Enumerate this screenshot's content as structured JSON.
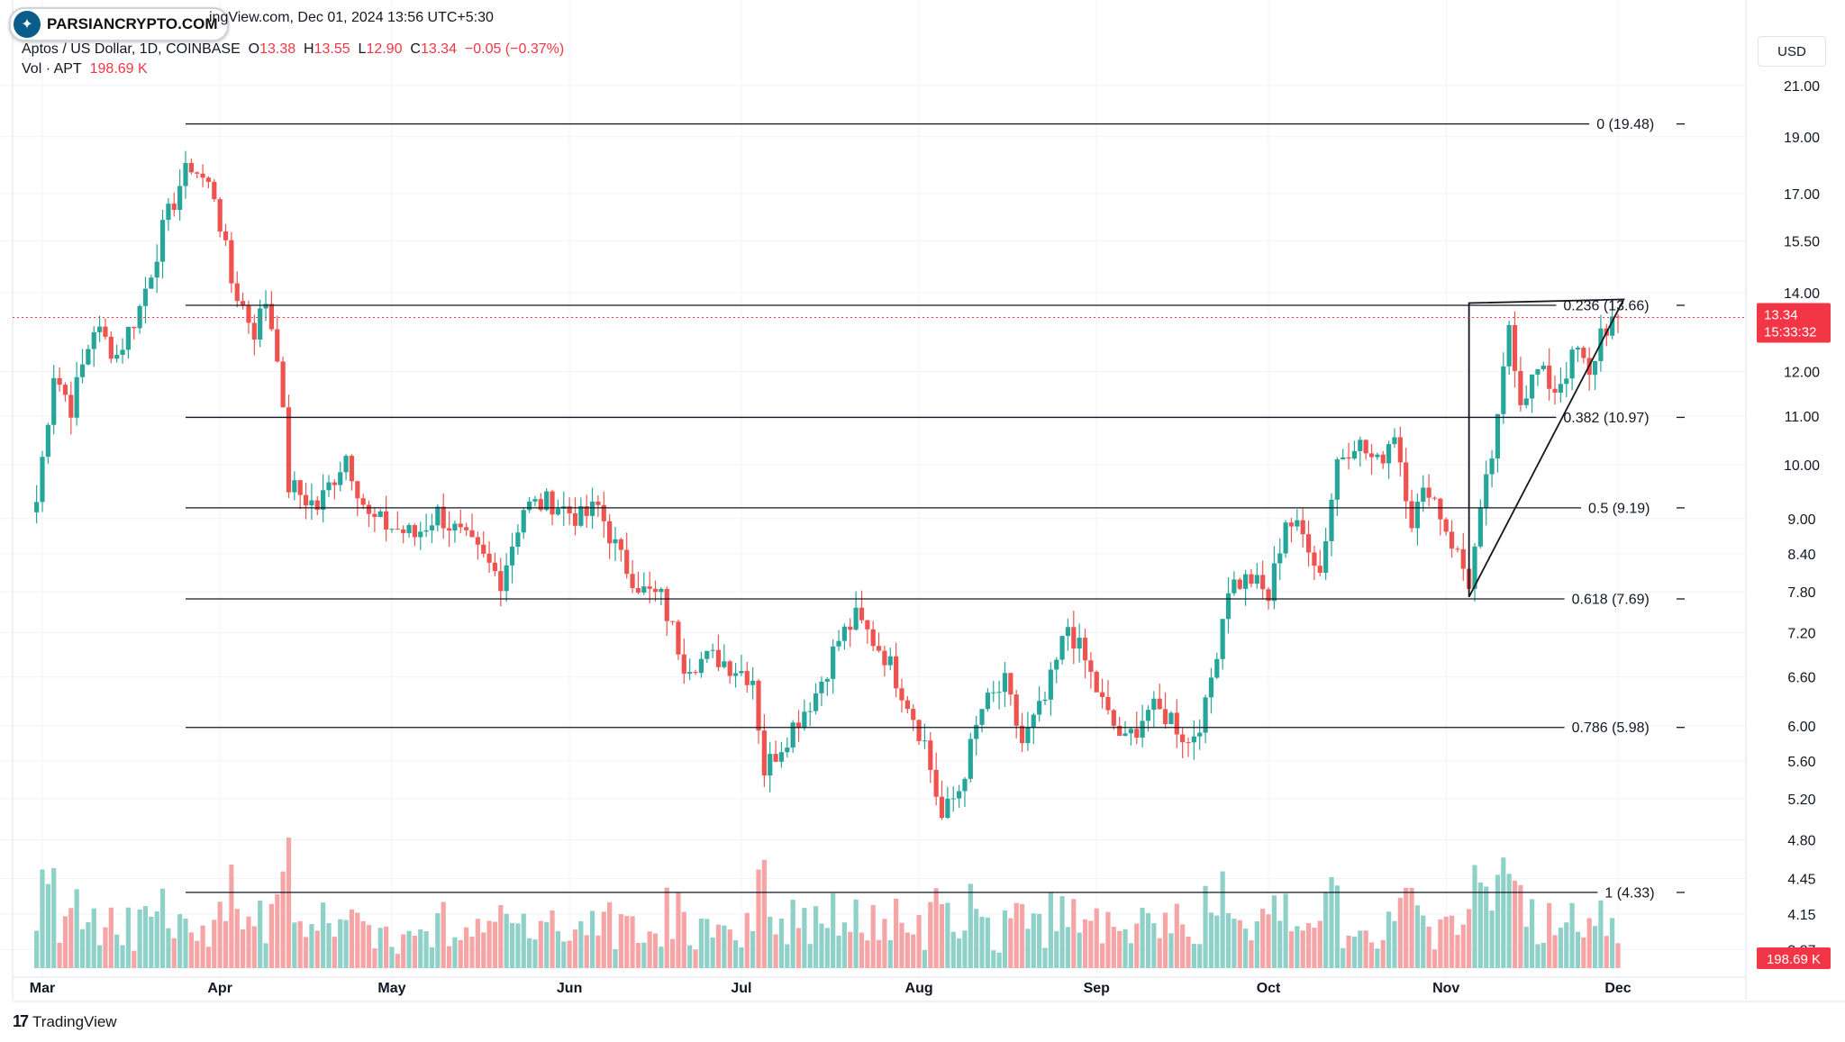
{
  "header": {
    "symbol_line": "Aptos / US Dollar, 1D, COINBASE",
    "open_label": "O",
    "open": "13.38",
    "high_label": "H",
    "high": "13.55",
    "low_label": "L",
    "low": "12.90",
    "close_label": "C",
    "close": "13.34",
    "change": "−0.05 (−0.37%)",
    "vol_label": "Vol · APT",
    "vol_value": "198.69 K"
  },
  "date_line": "ingView.com, Dec 01, 2024 13:56 UTC+5:30",
  "watermark": {
    "text": "PARSIANCRYPTO.COM"
  },
  "currency": "USD",
  "footer": {
    "brand": "TradingView"
  },
  "colors": {
    "up": "#26a69a",
    "down": "#ef5350",
    "vol_up": "#8fd1c9",
    "vol_down": "#f5a5a5",
    "fib_line": "#131722",
    "grid": "#f0f3fa",
    "price_tag": "#f23645"
  },
  "chart_data": {
    "type": "candlestick",
    "symbol": "APT/USD",
    "interval": "1D",
    "x_ticks": [
      "Mar",
      "Apr",
      "May",
      "Jun",
      "Jul",
      "Aug",
      "Sep",
      "Oct",
      "Nov",
      "Dec"
    ],
    "y_scale": "log",
    "y_ticks": [
      "21.00",
      "19.00",
      "17.00",
      "15.50",
      "14.00",
      "12.00",
      "11.00",
      "10.00",
      "9.00",
      "8.40",
      "7.80",
      "7.20",
      "6.60",
      "6.00",
      "5.60",
      "5.20",
      "4.80",
      "4.45",
      "4.15",
      "3.87"
    ],
    "y_range": [
      3.7,
      22.5
    ],
    "last_price": {
      "value": "13.34",
      "countdown": "15:33:32"
    },
    "volume_last": "198.69 K",
    "fib_levels": [
      {
        "label": "0 (19.48)",
        "value": 19.48
      },
      {
        "label": "0.236 (13.66)",
        "value": 13.66
      },
      {
        "label": "0.382 (10.97)",
        "value": 10.97
      },
      {
        "label": "0.5 (9.19)",
        "value": 9.19
      },
      {
        "label": "0.618 (7.69)",
        "value": 7.69
      },
      {
        "label": "0.786 (5.98)",
        "value": 5.98
      },
      {
        "label": "1 (4.33)",
        "value": 4.33
      }
    ],
    "triangle": [
      {
        "date": "2024-11-05",
        "price": 7.72
      },
      {
        "date": "2024-11-05",
        "price": 13.72
      },
      {
        "date": "2024-12-02",
        "price": 13.82
      }
    ],
    "anchors": [
      [
        "2024-02-29",
        9.3
      ],
      [
        "2024-03-03",
        12.0
      ],
      [
        "2024-03-06",
        11.2
      ],
      [
        "2024-03-10",
        13.1
      ],
      [
        "2024-03-14",
        12.4
      ],
      [
        "2024-03-18",
        13.6
      ],
      [
        "2024-03-22",
        15.8
      ],
      [
        "2024-03-25",
        17.3
      ],
      [
        "2024-03-27",
        18.0
      ],
      [
        "2024-03-31",
        17.0
      ],
      [
        "2024-04-03",
        14.3
      ],
      [
        "2024-04-07",
        13.0
      ],
      [
        "2024-04-09",
        13.8
      ],
      [
        "2024-04-11",
        12.5
      ],
      [
        "2024-04-13",
        9.6
      ],
      [
        "2024-04-18",
        9.2
      ],
      [
        "2024-04-23",
        10.2
      ],
      [
        "2024-04-27",
        9.0
      ],
      [
        "2024-05-05",
        8.7
      ],
      [
        "2024-05-09",
        9.1
      ],
      [
        "2024-05-16",
        8.4
      ],
      [
        "2024-05-20",
        8.0
      ],
      [
        "2024-05-24",
        9.2
      ],
      [
        "2024-05-29",
        9.3
      ],
      [
        "2024-06-03",
        9.0
      ],
      [
        "2024-06-06",
        9.2
      ],
      [
        "2024-06-10",
        8.3
      ],
      [
        "2024-06-14",
        7.8
      ],
      [
        "2024-06-17",
        7.7
      ],
      [
        "2024-06-21",
        6.8
      ],
      [
        "2024-06-27",
        6.85
      ],
      [
        "2024-07-03",
        6.6
      ],
      [
        "2024-07-05",
        5.5
      ],
      [
        "2024-07-10",
        6.0
      ],
      [
        "2024-07-14",
        6.4
      ],
      [
        "2024-07-18",
        7.1
      ],
      [
        "2024-07-21",
        7.4
      ],
      [
        "2024-07-26",
        6.9
      ],
      [
        "2024-07-30",
        6.3
      ],
      [
        "2024-08-02",
        5.8
      ],
      [
        "2024-08-05",
        5.0
      ],
      [
        "2024-08-08",
        5.3
      ],
      [
        "2024-08-12",
        6.2
      ],
      [
        "2024-08-16",
        6.5
      ],
      [
        "2024-08-19",
        5.8
      ],
      [
        "2024-08-23",
        6.3
      ],
      [
        "2024-08-27",
        7.3
      ],
      [
        "2024-08-30",
        6.8
      ],
      [
        "2024-09-03",
        6.1
      ],
      [
        "2024-09-06",
        5.8
      ],
      [
        "2024-09-10",
        6.2
      ],
      [
        "2024-09-14",
        6.1
      ],
      [
        "2024-09-17",
        5.8
      ],
      [
        "2024-09-20",
        6.2
      ],
      [
        "2024-09-24",
        7.9
      ],
      [
        "2024-09-28",
        8.0
      ],
      [
        "2024-10-01",
        7.7
      ],
      [
        "2024-10-04",
        9.0
      ],
      [
        "2024-10-08",
        8.6
      ],
      [
        "2024-10-10",
        8.1
      ],
      [
        "2024-10-13",
        10.1
      ],
      [
        "2024-10-16",
        10.5
      ],
      [
        "2024-10-20",
        10.0
      ],
      [
        "2024-10-23",
        10.7
      ],
      [
        "2024-10-26",
        9.0
      ],
      [
        "2024-10-29",
        9.6
      ],
      [
        "2024-11-02",
        8.6
      ],
      [
        "2024-11-05",
        7.95
      ],
      [
        "2024-11-08",
        9.6
      ],
      [
        "2024-11-10",
        10.8
      ],
      [
        "2024-11-12",
        13.2
      ],
      [
        "2024-11-14",
        11.4
      ],
      [
        "2024-11-17",
        12.0
      ],
      [
        "2024-11-20",
        11.6
      ],
      [
        "2024-11-24",
        12.5
      ],
      [
        "2024-11-26",
        11.8
      ],
      [
        "2024-11-28",
        13.0
      ],
      [
        "2024-12-01",
        13.34
      ]
    ]
  }
}
